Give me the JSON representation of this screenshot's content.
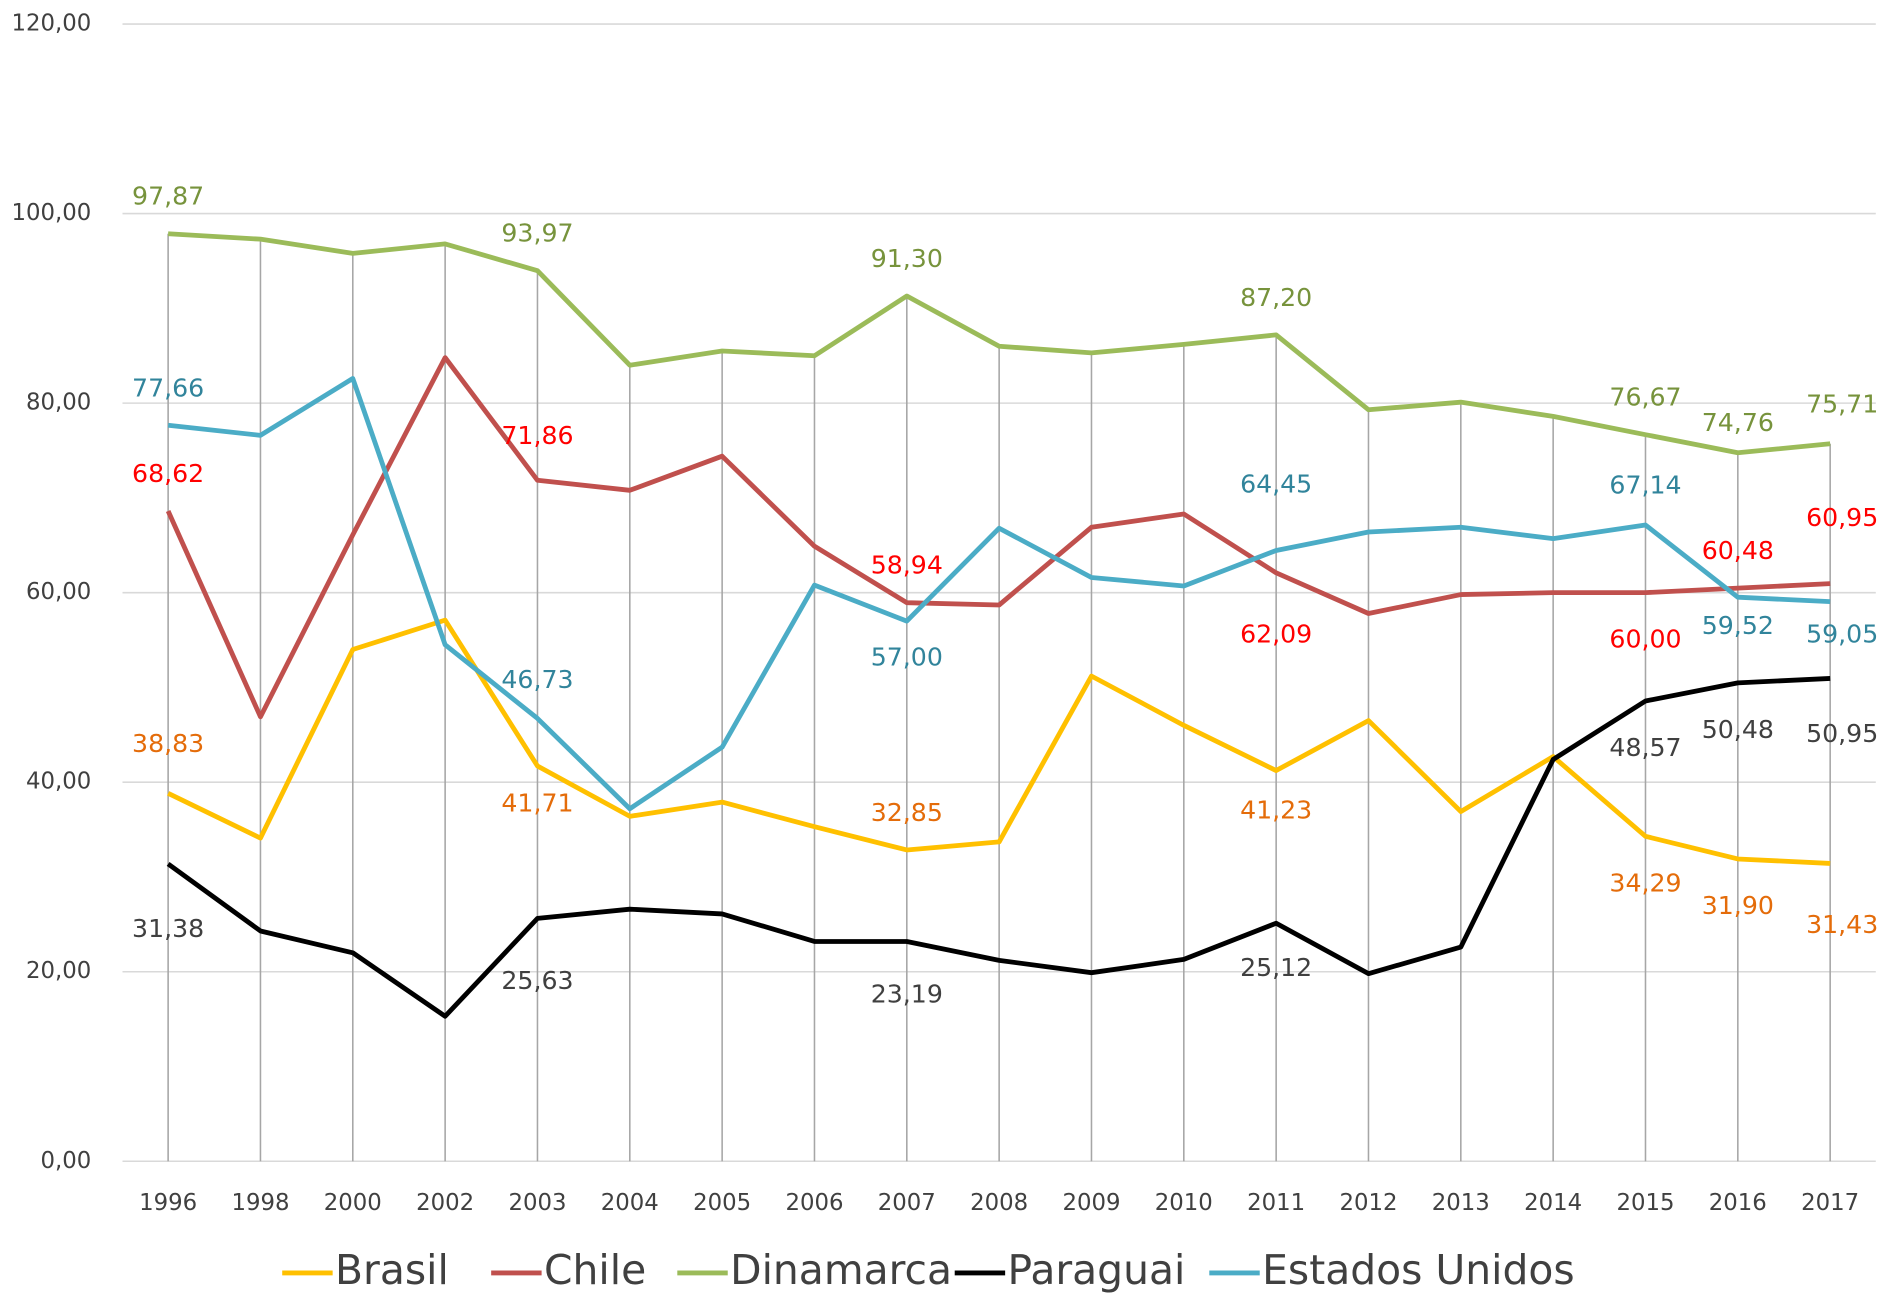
{
  "chart_data": {
    "type": "line",
    "categories": [
      "1996",
      "1998",
      "2000",
      "2002",
      "2003",
      "2004",
      "2005",
      "2006",
      "2007",
      "2008",
      "2009",
      "2010",
      "2011",
      "2012",
      "2013",
      "2014",
      "2015",
      "2016",
      "2017"
    ],
    "ylim": [
      0,
      120
    ],
    "yticks": [
      {
        "value": 0,
        "label": "0,00"
      },
      {
        "value": 20,
        "label": "20,00"
      },
      {
        "value": 40,
        "label": "40,00"
      },
      {
        "value": 60,
        "label": "60,00"
      },
      {
        "value": 80,
        "label": "80,00"
      },
      {
        "value": 100,
        "label": "100,00"
      },
      {
        "value": 120,
        "label": "120,00"
      }
    ],
    "grid": true,
    "legend": "bottom",
    "series": [
      {
        "name": "Brasil",
        "color": "#FFC000",
        "label_color": "#E46C0A",
        "values": [
          38.83,
          34.1,
          54.0,
          57.1,
          41.71,
          36.4,
          37.9,
          35.3,
          32.85,
          33.7,
          51.2,
          46.0,
          41.23,
          46.5,
          36.9,
          42.7,
          34.29,
          31.9,
          31.43
        ],
        "value_labels": [
          "38,83",
          null,
          null,
          null,
          "41,71",
          null,
          null,
          null,
          "32,85",
          null,
          null,
          null,
          "41,23",
          null,
          null,
          null,
          "34,29",
          "31,90",
          "31,43"
        ]
      },
      {
        "name": "Chile",
        "color": "#C0504D",
        "label_color": "#FF0000",
        "values": [
          68.62,
          46.9,
          66.1,
          84.8,
          71.86,
          70.8,
          74.4,
          64.9,
          58.94,
          58.7,
          66.9,
          68.3,
          62.09,
          57.8,
          59.8,
          60.0,
          60.0,
          60.48,
          60.95
        ],
        "value_labels": [
          "68,62",
          null,
          null,
          null,
          "71,86",
          null,
          null,
          null,
          "58,94",
          null,
          null,
          null,
          "62,09",
          null,
          null,
          null,
          "60,00",
          "60,48",
          "60,95"
        ]
      },
      {
        "name": "Dinamarca",
        "color": "#9BBB59",
        "label_color": "#77933C",
        "values": [
          97.87,
          97.3,
          95.8,
          96.8,
          93.97,
          84.0,
          85.5,
          85.0,
          91.3,
          86.0,
          85.3,
          86.2,
          87.2,
          79.3,
          80.1,
          78.6,
          76.67,
          74.76,
          75.71
        ],
        "value_labels": [
          "97,87",
          null,
          null,
          null,
          "93,97",
          null,
          null,
          null,
          "91,30",
          null,
          null,
          null,
          "87,20",
          null,
          null,
          null,
          "76,67",
          "74,76",
          "75,71"
        ]
      },
      {
        "name": "Paraguai",
        "color": "#000000",
        "label_color": "#404040",
        "values": [
          31.38,
          24.3,
          22.0,
          15.3,
          25.63,
          26.6,
          26.1,
          23.2,
          23.19,
          21.2,
          19.9,
          21.3,
          25.12,
          19.8,
          22.6,
          42.4,
          48.57,
          50.48,
          50.95
        ],
        "value_labels": [
          "31,38",
          null,
          null,
          null,
          "25,63",
          null,
          null,
          null,
          "23,19",
          null,
          null,
          null,
          "25,12",
          null,
          null,
          null,
          "48,57",
          "50,48",
          "50,95"
        ]
      },
      {
        "name": "Estados Unidos",
        "color": "#4BACC6",
        "label_color": "#31849B",
        "values": [
          77.66,
          76.6,
          82.6,
          54.5,
          46.73,
          37.2,
          43.7,
          60.8,
          57.0,
          66.8,
          61.6,
          60.7,
          64.45,
          66.4,
          66.9,
          65.7,
          67.14,
          59.52,
          59.05
        ],
        "value_labels": [
          "77,66",
          null,
          null,
          null,
          "46,73",
          null,
          null,
          null,
          "57,00",
          null,
          null,
          null,
          "64,45",
          null,
          null,
          null,
          "67,14",
          "59,52",
          "59,05"
        ]
      }
    ]
  }
}
